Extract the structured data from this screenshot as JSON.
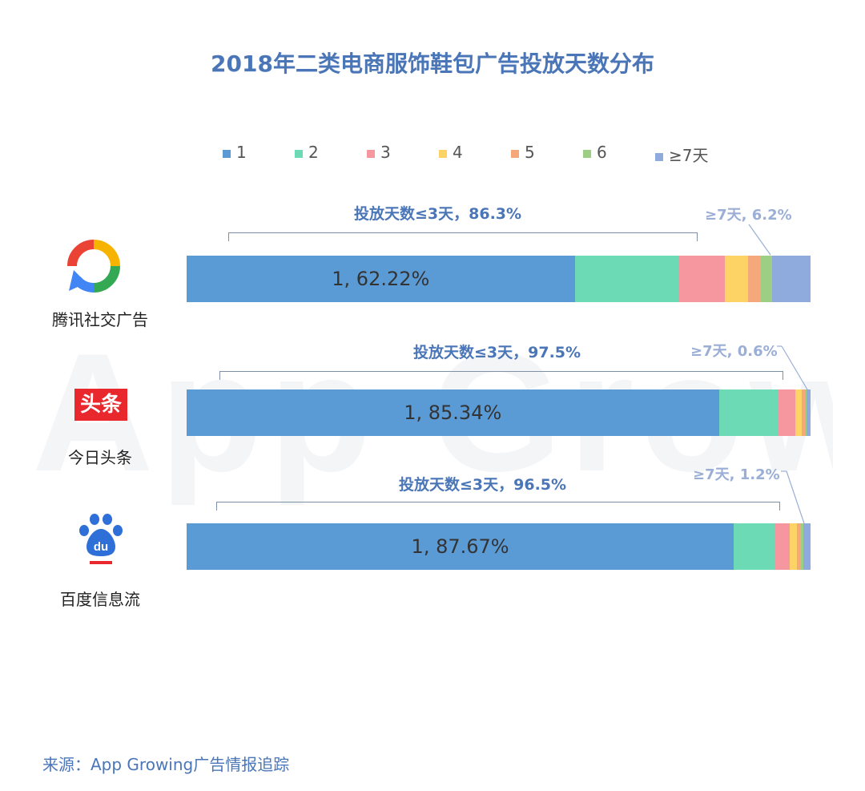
{
  "title": "2018年二类电商服饰鞋包广告投放天数分布",
  "watermark": "App Growing",
  "source": "来源：App Growing广告情报追踪",
  "colors": {
    "1": "#5b9bd5",
    "2": "#6cdbb5",
    "3": "#f6969f",
    "4": "#fdd366",
    "5": "#f5a97a",
    "6": "#9ccf84",
    "7plus": "#8faadc",
    "title": "#4a76b8"
  },
  "chart_data": {
    "type": "bar",
    "orientation": "horizontal",
    "stacked": true,
    "normalized": true,
    "legend_position": "top",
    "series_names": [
      "1",
      "2",
      "3",
      "4",
      "5",
      "6",
      "≥7天"
    ],
    "categories": [
      "腾讯社交广告",
      "今日头条",
      "百度信息流"
    ],
    "rows": [
      {
        "platform": "腾讯社交广告",
        "values": [
          62.22,
          16.8,
          7.3,
          3.7,
          2.1,
          1.7,
          6.2
        ],
        "first_label": "1, 62.22%",
        "bracket_label": "投放天数≤3天，86.3%",
        "tail_label": "≥7天, 6.2%"
      },
      {
        "platform": "今日头条",
        "values": [
          85.34,
          9.4,
          2.8,
          1.1,
          0.5,
          0.3,
          0.6
        ],
        "first_label": "1, 85.34%",
        "bracket_label": "投放天数≤3天，97.5%",
        "tail_label": "≥7天, 0.6%"
      },
      {
        "platform": "百度信息流",
        "values": [
          87.67,
          6.6,
          2.3,
          1.2,
          0.6,
          0.4,
          1.2
        ],
        "first_label": "1, 87.67%",
        "bracket_label": "投放天数≤3天，96.5%",
        "tail_label": "≥7天, 1.2%"
      }
    ]
  }
}
